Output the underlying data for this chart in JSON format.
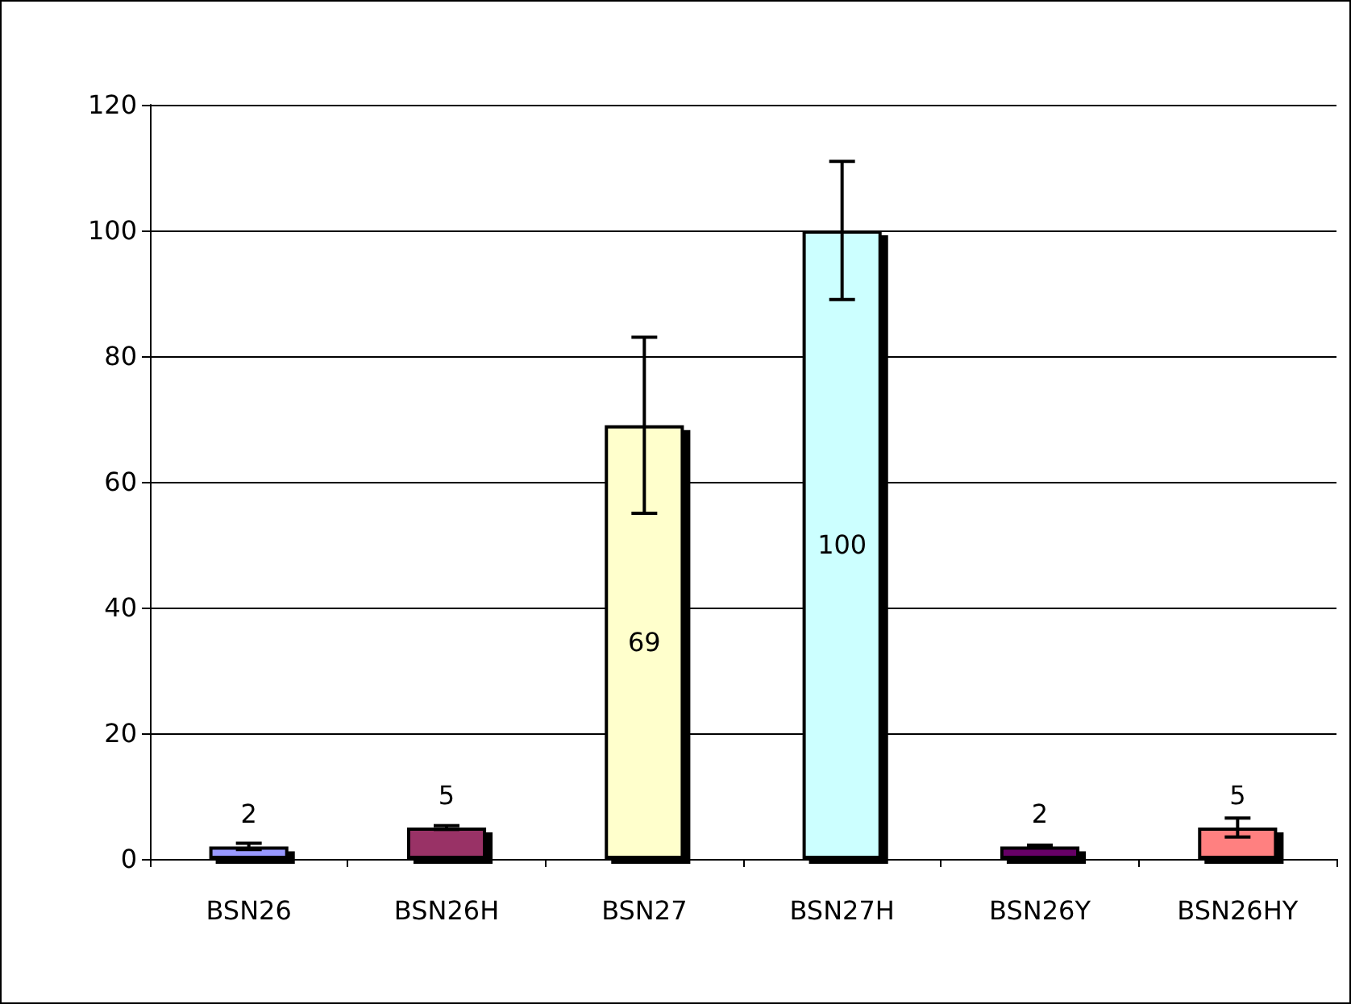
{
  "chart_data": {
    "type": "bar",
    "categories": [
      "BSN26",
      "BSN26H",
      "BSN27",
      "BSN27H",
      "BSN26Y",
      "BSN26HY"
    ],
    "values": [
      2,
      5,
      69,
      100,
      2,
      5
    ],
    "colors": [
      "#9999ff",
      "#993366",
      "#ffffcc",
      "#ccffff",
      "#660066",
      "#ff8080"
    ],
    "errors": [
      0.5,
      0.3,
      14,
      11,
      0.2,
      1.5
    ],
    "ylim": [
      0,
      120
    ],
    "yticks": [
      0,
      20,
      40,
      60,
      80,
      100,
      120
    ],
    "grid": "y",
    "data_labels": true
  }
}
